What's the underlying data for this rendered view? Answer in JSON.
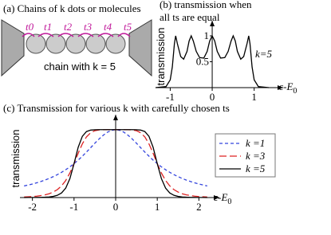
{
  "diagram": {
    "title": "(a) Chains of k dots or molecules",
    "couplings": [
      "t0",
      "t1",
      "t2",
      "t3",
      "t4",
      "t5"
    ],
    "caption": "chain with k = 5"
  },
  "chart_data": [
    {
      "type": "line",
      "title": [
        "(b) transmission when",
        "all ts are equal"
      ],
      "ylabel": "transmission",
      "xlabel": [
        "ε-E",
        "0"
      ],
      "annotation": "k=5",
      "x": [
        -1.35,
        -1.1,
        -1.0,
        -0.95,
        -0.9,
        -0.87,
        -0.83,
        -0.75,
        -0.68,
        -0.6,
        -0.55,
        -0.5,
        -0.45,
        -0.38,
        -0.3,
        -0.2,
        -0.12,
        -0.06,
        0,
        0.06,
        0.12,
        0.2,
        0.3,
        0.38,
        0.45,
        0.5,
        0.55,
        0.6,
        0.68,
        0.75,
        0.83,
        0.87,
        0.9,
        0.95,
        1.0,
        1.1,
        1.35
      ],
      "series": [
        {
          "color": "#000000",
          "linestyle": "solid",
          "values": [
            0,
            0.02,
            0.15,
            0.4,
            0.85,
            1,
            0.85,
            0.6,
            0.55,
            0.7,
            0.9,
            1,
            0.9,
            0.7,
            0.58,
            0.57,
            0.7,
            0.9,
            1,
            0.9,
            0.7,
            0.57,
            0.58,
            0.7,
            0.9,
            1,
            0.9,
            0.7,
            0.55,
            0.6,
            0.85,
            1,
            0.85,
            0.4,
            0.15,
            0.02,
            0
          ]
        }
      ],
      "xlim": [
        -1.35,
        1.5
      ],
      "ylim": [
        0,
        1.2
      ],
      "xticks": [
        -1,
        0,
        1
      ],
      "yticks": [
        0.5,
        1
      ]
    },
    {
      "type": "line",
      "title": "(c) Transmission for various k with carefully chosen ts",
      "ylabel": "transmission",
      "xlabel": [
        "ε-E",
        "0"
      ],
      "x": [
        -2.2,
        -2.1,
        -2.0,
        -1.9,
        -1.8,
        -1.7,
        -1.6,
        -1.5,
        -1.4,
        -1.3,
        -1.2,
        -1.1,
        -1.0,
        -0.9,
        -0.8,
        -0.7,
        -0.6,
        -0.5,
        -0.4,
        -0.3,
        -0.2,
        -0.1,
        0,
        0.1,
        0.2,
        0.3,
        0.4,
        0.5,
        0.6,
        0.7,
        0.8,
        0.9,
        1.0,
        1.1,
        1.2,
        1.3,
        1.4,
        1.5,
        1.6,
        1.7,
        1.8,
        1.9,
        2.0,
        2.1,
        2.2
      ],
      "series": [
        {
          "name": "k =1",
          "color": "#3344dd",
          "linestyle": "dashed",
          "values": [
            0.171,
            0.185,
            0.2,
            0.217,
            0.236,
            0.257,
            0.281,
            0.308,
            0.338,
            0.372,
            0.41,
            0.452,
            0.5,
            0.552,
            0.61,
            0.671,
            0.735,
            0.8,
            0.862,
            0.917,
            0.962,
            0.99,
            1,
            0.99,
            0.962,
            0.917,
            0.862,
            0.8,
            0.735,
            0.671,
            0.61,
            0.552,
            0.5,
            0.452,
            0.41,
            0.372,
            0.338,
            0.308,
            0.281,
            0.257,
            0.236,
            0.217,
            0.2,
            0.185,
            0.171
          ]
        },
        {
          "name": "k =3",
          "color": "#dd2222",
          "linestyle": "longdash",
          "values": [
            0.009,
            0.012,
            0.015,
            0.021,
            0.029,
            0.04,
            0.056,
            0.081,
            0.117,
            0.172,
            0.251,
            0.361,
            0.5,
            0.653,
            0.792,
            0.895,
            0.955,
            0.985,
            0.996,
            0.999,
            1,
            1,
            1,
            1,
            1,
            0.999,
            0.996,
            0.985,
            0.955,
            0.895,
            0.792,
            0.653,
            0.5,
            0.361,
            0.251,
            0.172,
            0.117,
            0.081,
            0.056,
            0.04,
            0.029,
            0.021,
            0.015,
            0.012,
            0.009
          ]
        },
        {
          "name": "k =5",
          "color": "#000000",
          "linestyle": "solid",
          "values": [
            0,
            0.001,
            0.001,
            0.002,
            0.003,
            0.005,
            0.009,
            0.017,
            0.033,
            0.068,
            0.139,
            0.278,
            0.5,
            0.741,
            0.903,
            0.973,
            0.994,
            0.999,
            1,
            1,
            1,
            1,
            1,
            1,
            1,
            1,
            1,
            0.999,
            0.994,
            0.973,
            0.903,
            0.741,
            0.5,
            0.278,
            0.139,
            0.068,
            0.033,
            0.017,
            0.009,
            0.005,
            0.003,
            0.002,
            0.001,
            0.001,
            0
          ]
        }
      ],
      "xlim": [
        -2.3,
        2.3
      ],
      "ylim": [
        0,
        1.15
      ],
      "xticks": [
        -2,
        -1,
        0,
        1,
        2
      ],
      "legend": "right"
    }
  ]
}
